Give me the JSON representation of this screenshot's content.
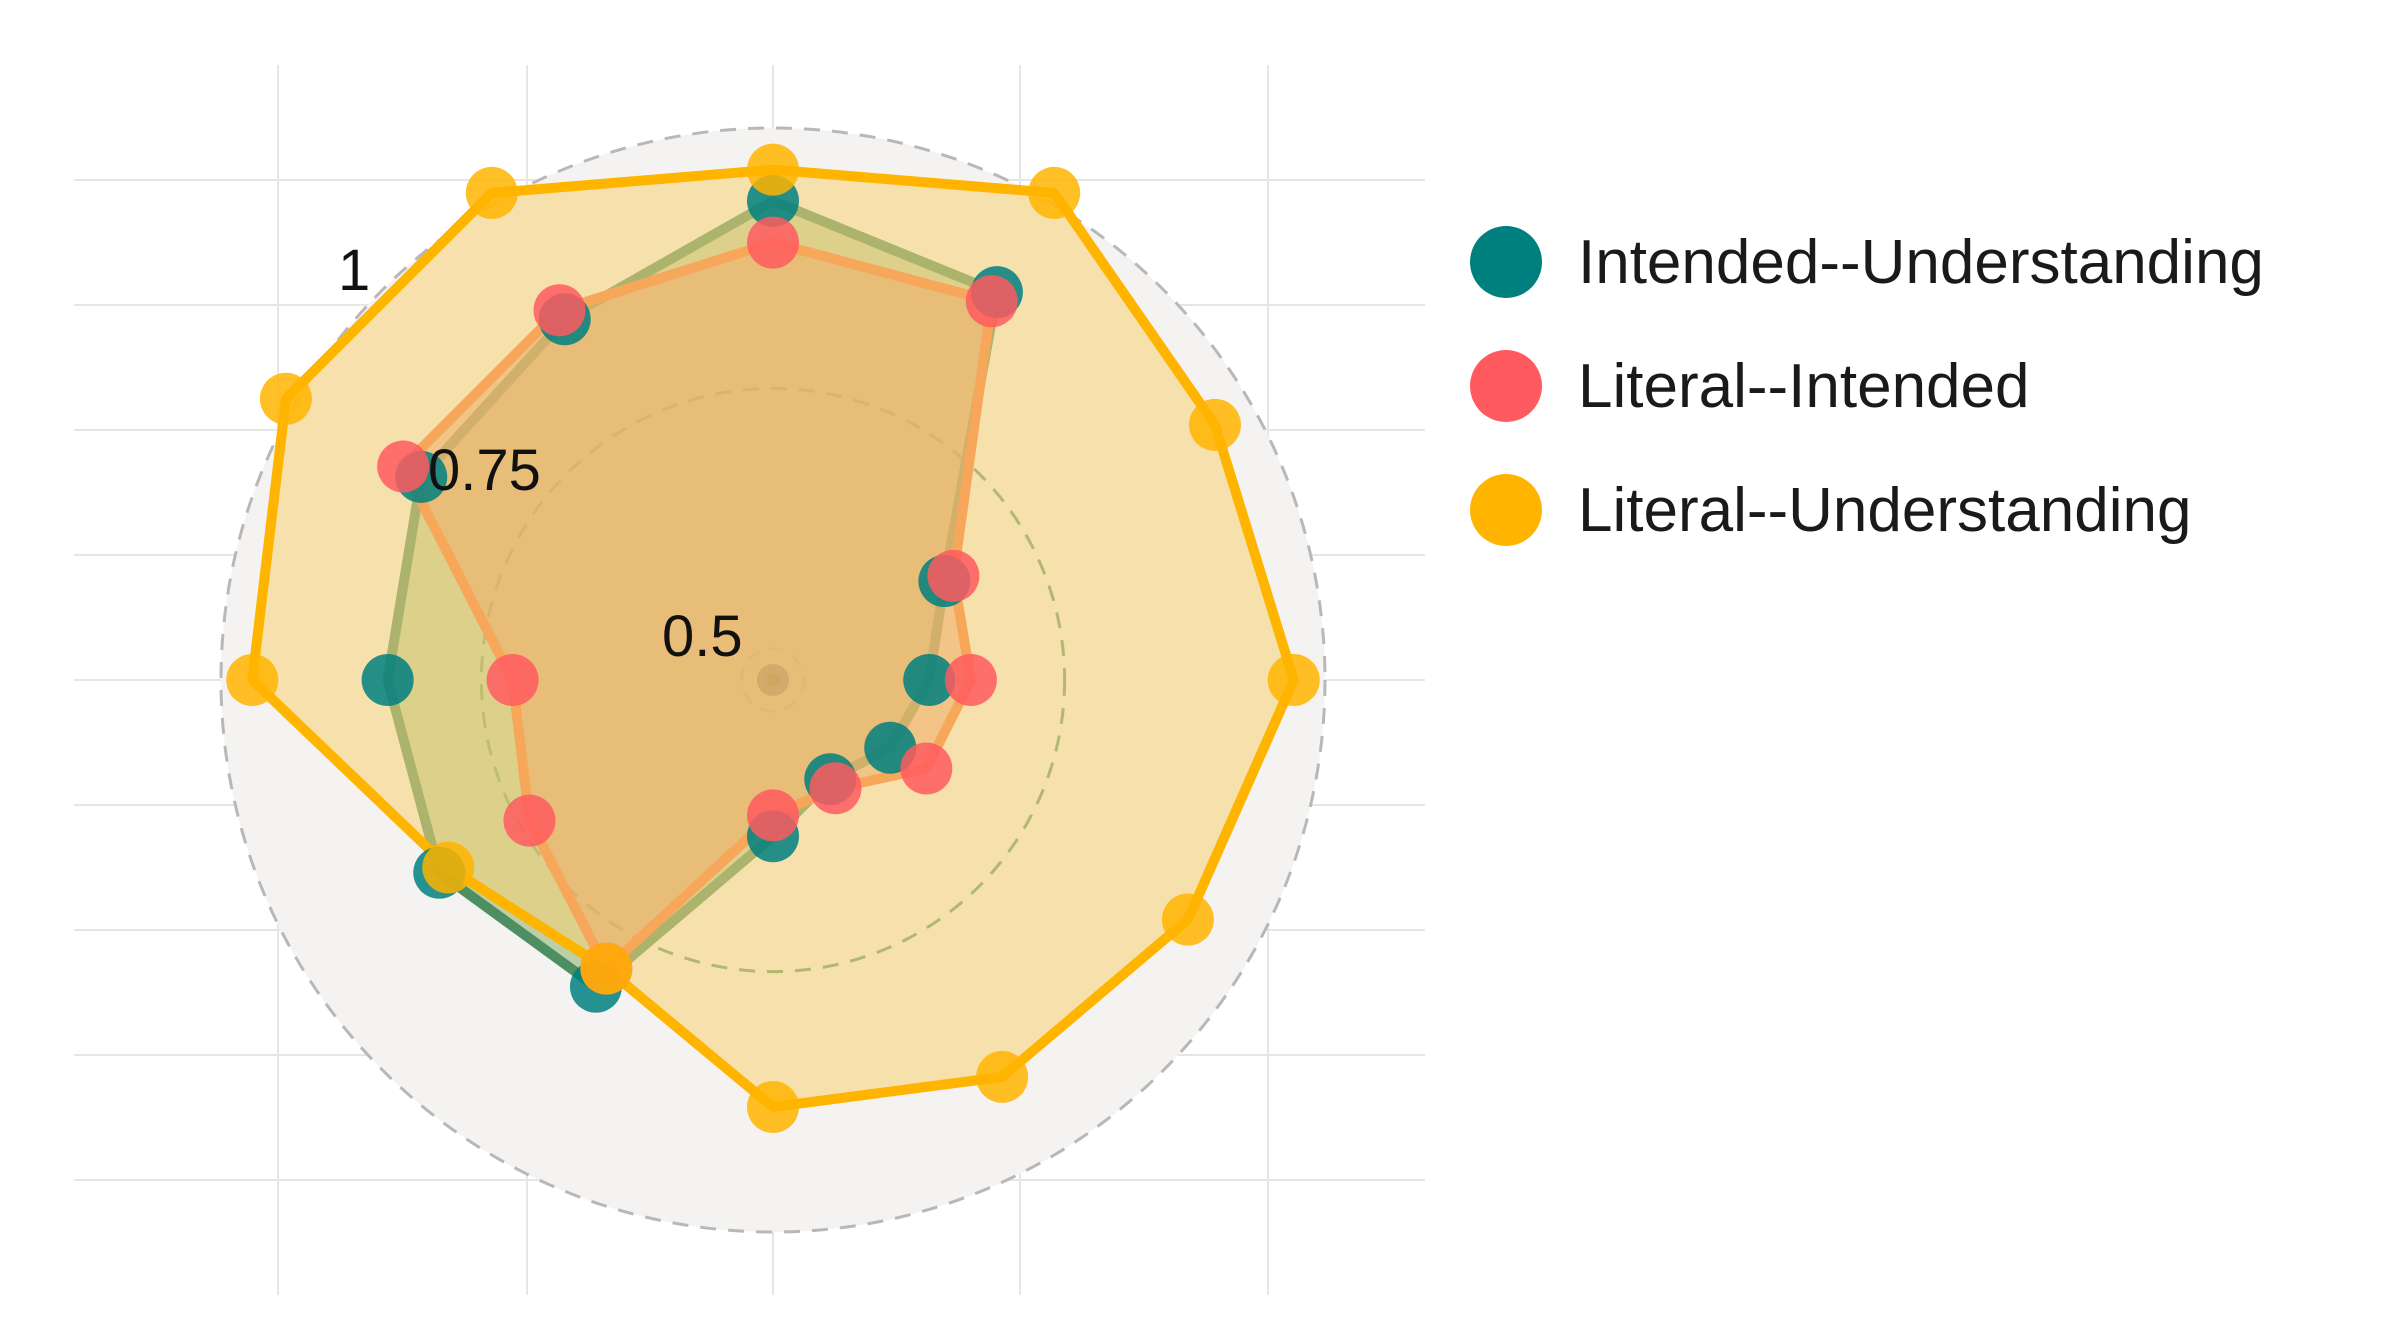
{
  "chart_data": {
    "type": "radar",
    "title": "",
    "ring_labels": [
      "0.5",
      "0.75",
      "1"
    ],
    "rlim": [
      0.47,
      1.02
    ],
    "rings": [
      0.5,
      0.75,
      1.0
    ],
    "grid": true,
    "legend_position": "right",
    "axes_count": 12,
    "series": [
      {
        "name": "Intended--Understanding",
        "color": "#007F7F",
        "line_color": "#4E8F62",
        "fill": "#8FB069",
        "values": [
          0.93,
          0.9,
          0.66,
          0.62,
          0.6,
          0.58,
          0.62,
          0.81,
          0.84,
          0.84,
          0.86,
          0.87
        ]
      },
      {
        "name": "Literal--Intended",
        "color": "#FF5A5F",
        "line_color": "#F4733B",
        "fill": "#E6825A",
        "values": [
          0.89,
          0.89,
          0.67,
          0.66,
          0.64,
          0.59,
          0.6,
          0.79,
          0.74,
          0.72,
          0.88,
          0.88
        ]
      },
      {
        "name": "Literal--Understanding",
        "color": "#FFB400",
        "line_color": "#FFB400",
        "fill": "#F7D275",
        "values": [
          0.96,
          1.01,
          0.96,
          0.97,
          0.93,
          0.91,
          0.88,
          0.79,
          0.83,
          0.97,
          1.01,
          1.01
        ]
      }
    ]
  }
}
